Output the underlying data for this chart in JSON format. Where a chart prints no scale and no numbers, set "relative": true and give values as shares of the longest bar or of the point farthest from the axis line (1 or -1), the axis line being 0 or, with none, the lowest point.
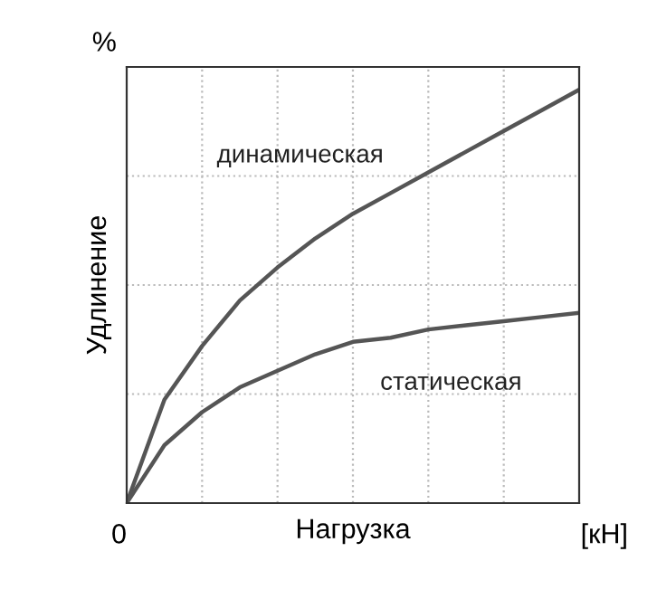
{
  "chart_data": {
    "type": "line",
    "relative": true,
    "xlabel": "Нагрузка",
    "ylabel": "Удлинение",
    "categories": [
      null,
      null,
      null,
      null,
      null,
      null,
      null,
      null,
      null,
      null,
      null,
      null,
      null
    ],
    "series": [
      {
        "name": "динамическая",
        "color": "#555555",
        "values": [
          0,
          0.25,
          0.38,
          0.49,
          0.57,
          0.64,
          0.7,
          0.75,
          0.8,
          0.85,
          0.9,
          0.95,
          1
        ]
      },
      {
        "name": "статическая",
        "color": "#555555",
        "values": [
          0,
          0.14,
          0.22,
          0.28,
          0.32,
          0.36,
          0.39,
          0.4,
          0.42,
          0.43,
          0.44,
          0.45,
          0.46
        ]
      }
    ],
    "annotations": [
      "0",
      "%",
      "[кН]"
    ],
    "grid": true,
    "marker": "none",
    "line_style": "solid"
  }
}
